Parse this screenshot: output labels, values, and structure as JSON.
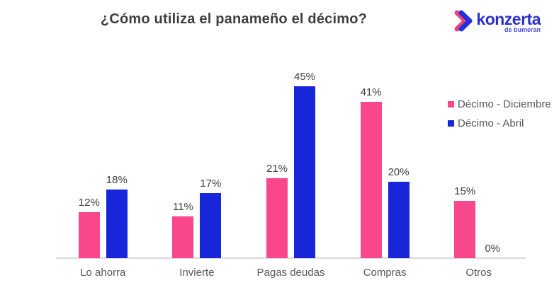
{
  "title": "¿Cómo utiliza el panameño el décimo?",
  "logo": {
    "brand": "konzerta",
    "subtext": "de bumeran",
    "brand_color": "#2b2fc9",
    "chevron_pink": "#ef3e7b",
    "chevron_blue": "#2430d8",
    "chevron_teal": "#17c0cf"
  },
  "legend": {
    "items": [
      {
        "label": "Décimo - Diciembre",
        "color": "#f8478c"
      },
      {
        "label": "Décimo - Abril",
        "color": "#1726d8"
      }
    ]
  },
  "chart_data": {
    "type": "bar",
    "title": "¿Cómo utiliza el panameño el décimo?",
    "categories": [
      "Lo ahorra",
      "Invierte",
      "Pagas deudas",
      "Compras",
      "Otros"
    ],
    "series": [
      {
        "name": "Décimo - Diciembre",
        "color": "#f8478c",
        "values": [
          12,
          11,
          21,
          41,
          15
        ]
      },
      {
        "name": "Décimo - Abril",
        "color": "#1726d8",
        "values": [
          18,
          17,
          45,
          20,
          0
        ]
      }
    ],
    "value_labels": [
      [
        "12%",
        "11%",
        "21%",
        "41%",
        "15%"
      ],
      [
        "18%",
        "17%",
        "45%",
        "20%",
        "0%"
      ]
    ],
    "value_suffix": "%",
    "xlabel": "",
    "ylabel": "",
    "ylim": [
      0,
      50
    ],
    "grid": false,
    "legend_position": "right",
    "axis_line_color": "#d9d9d9",
    "background": "#ffffff"
  }
}
